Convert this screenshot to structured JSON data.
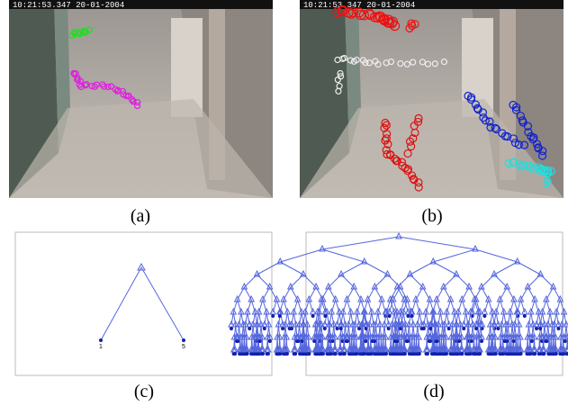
{
  "panels": [
    {
      "label": "(a)",
      "timestamp": "10:21:53.347 20-01-2004"
    },
    {
      "label": "(b)",
      "timestamp": "10:21:53.347 20-01-2004"
    },
    {
      "label": "(c)",
      "leaves": [
        "1",
        "5"
      ]
    },
    {
      "label": "(d)"
    }
  ]
}
